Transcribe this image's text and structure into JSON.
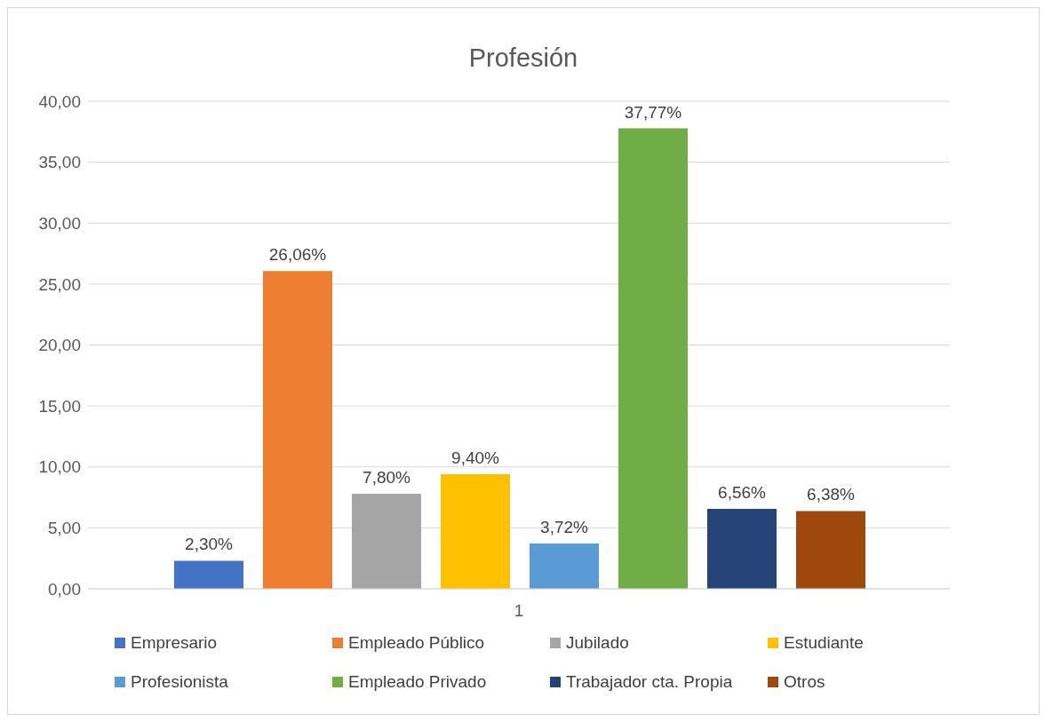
{
  "chart_data": {
    "type": "bar",
    "title": "Profesión",
    "categories": [
      "1"
    ],
    "series": [
      {
        "name": "Empresario",
        "color": "#4472c4",
        "values": [
          2.3
        ],
        "value_labels": [
          "2,30%"
        ]
      },
      {
        "name": "Empleado Público",
        "color": "#ed7d31",
        "values": [
          26.06
        ],
        "value_labels": [
          "26,06%"
        ]
      },
      {
        "name": "Jubilado",
        "color": "#a5a5a5",
        "values": [
          7.8
        ],
        "value_labels": [
          "7,80%"
        ]
      },
      {
        "name": "Estudiante",
        "color": "#ffc000",
        "values": [
          9.4
        ],
        "value_labels": [
          "9,40%"
        ]
      },
      {
        "name": "Profesionista",
        "color": "#5b9bd5",
        "values": [
          3.72
        ],
        "value_labels": [
          "3,72%"
        ]
      },
      {
        "name": "Empleado Privado",
        "color": "#70ad47",
        "values": [
          37.77
        ],
        "value_labels": [
          "37,77%"
        ]
      },
      {
        "name": "Trabajador cta. Propia",
        "color": "#264478",
        "values": [
          6.56
        ],
        "value_labels": [
          "6,56%"
        ]
      },
      {
        "name": "Otros",
        "color": "#9e480e",
        "values": [
          6.38
        ],
        "value_labels": [
          "6,38%"
        ]
      }
    ],
    "ylim": [
      0,
      40
    ],
    "yticks": [
      {
        "value": 0,
        "label": "0,00"
      },
      {
        "value": 5,
        "label": "5,00"
      },
      {
        "value": 10,
        "label": "10,00"
      },
      {
        "value": 15,
        "label": "15,00"
      },
      {
        "value": 20,
        "label": "20,00"
      },
      {
        "value": 25,
        "label": "25,00"
      },
      {
        "value": 30,
        "label": "30,00"
      },
      {
        "value": 35,
        "label": "35,00"
      },
      {
        "value": 40,
        "label": "40,00"
      }
    ],
    "grid": "y",
    "legend": "bottom"
  }
}
